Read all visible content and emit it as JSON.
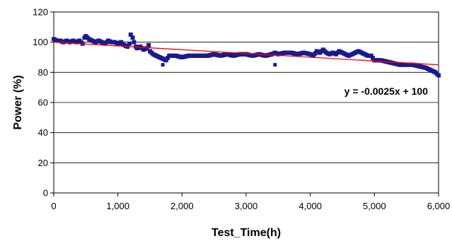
{
  "chart_data": {
    "type": "scatter",
    "title": "",
    "xlabel": "Test_Time(h)",
    "ylabel": "Power (%)",
    "xlim": [
      0,
      6000
    ],
    "ylim": [
      0,
      120
    ],
    "x_ticks": [
      0,
      1000,
      2000,
      3000,
      4000,
      5000,
      6000
    ],
    "x_tick_labels": [
      "0",
      "1,000",
      "2,000",
      "3,000",
      "4,000",
      "5,000",
      "6,000"
    ],
    "y_ticks": [
      0,
      20,
      40,
      60,
      80,
      100,
      120
    ],
    "y_tick_labels": [
      "0",
      "20",
      "40",
      "60",
      "80",
      "100",
      "120"
    ],
    "grid": "horizontal",
    "series": [
      {
        "color": "#1a1a8c",
        "x": [
          0,
          50,
          100,
          150,
          200,
          250,
          300,
          350,
          400,
          450,
          480,
          500,
          550,
          600,
          650,
          700,
          750,
          800,
          850,
          900,
          950,
          1000,
          1050,
          1100,
          1150,
          1180,
          1200,
          1230,
          1250,
          1280,
          1300,
          1350,
          1400,
          1450,
          1480,
          1500,
          1550,
          1600,
          1650,
          1700,
          1750,
          1800,
          1900,
          2000,
          2100,
          2200,
          2300,
          2400,
          2500,
          2600,
          2700,
          2800,
          2900,
          3000,
          3100,
          3200,
          3300,
          3400,
          3450,
          3500,
          3600,
          3700,
          3800,
          3900,
          4000,
          4050,
          4100,
          4150,
          4200,
          4250,
          4300,
          4350,
          4400,
          4450,
          4500,
          4550,
          4600,
          4650,
          4700,
          4750,
          4800,
          4850,
          4900,
          4950,
          5000,
          5100,
          5200,
          5300,
          5400,
          5500,
          5600,
          5700,
          5800,
          5850,
          5900,
          5950,
          6000
        ],
        "y": [
          102,
          101,
          101,
          100,
          101,
          100,
          101,
          100,
          101,
          99,
          103,
          104,
          102,
          101,
          100,
          101,
          100,
          99,
          101,
          100,
          100,
          99,
          100,
          98,
          97,
          99,
          105,
          103,
          100,
          97,
          96,
          97,
          95,
          96,
          98,
          94,
          92,
          91,
          90,
          89,
          88,
          91,
          91,
          90,
          91,
          91,
          91,
          91,
          92,
          91,
          92,
          91,
          92,
          92,
          91,
          92,
          91,
          92,
          93,
          92,
          93,
          93,
          92,
          93,
          92,
          91,
          94,
          93,
          95,
          93,
          92,
          93,
          92,
          94,
          93,
          92,
          91,
          92,
          93,
          94,
          93,
          92,
          91,
          91,
          88,
          88,
          87,
          86,
          85,
          85,
          85,
          84,
          83,
          82,
          81,
          80,
          78
        ]
      }
    ],
    "trendline": {
      "slope": -0.0025,
      "intercept": 100,
      "color": "#ff0000",
      "label": "y = -0.0025x + 100"
    },
    "outliers": [
      {
        "x": 1700,
        "y": 85
      },
      {
        "x": 3450,
        "y": 85
      }
    ]
  }
}
